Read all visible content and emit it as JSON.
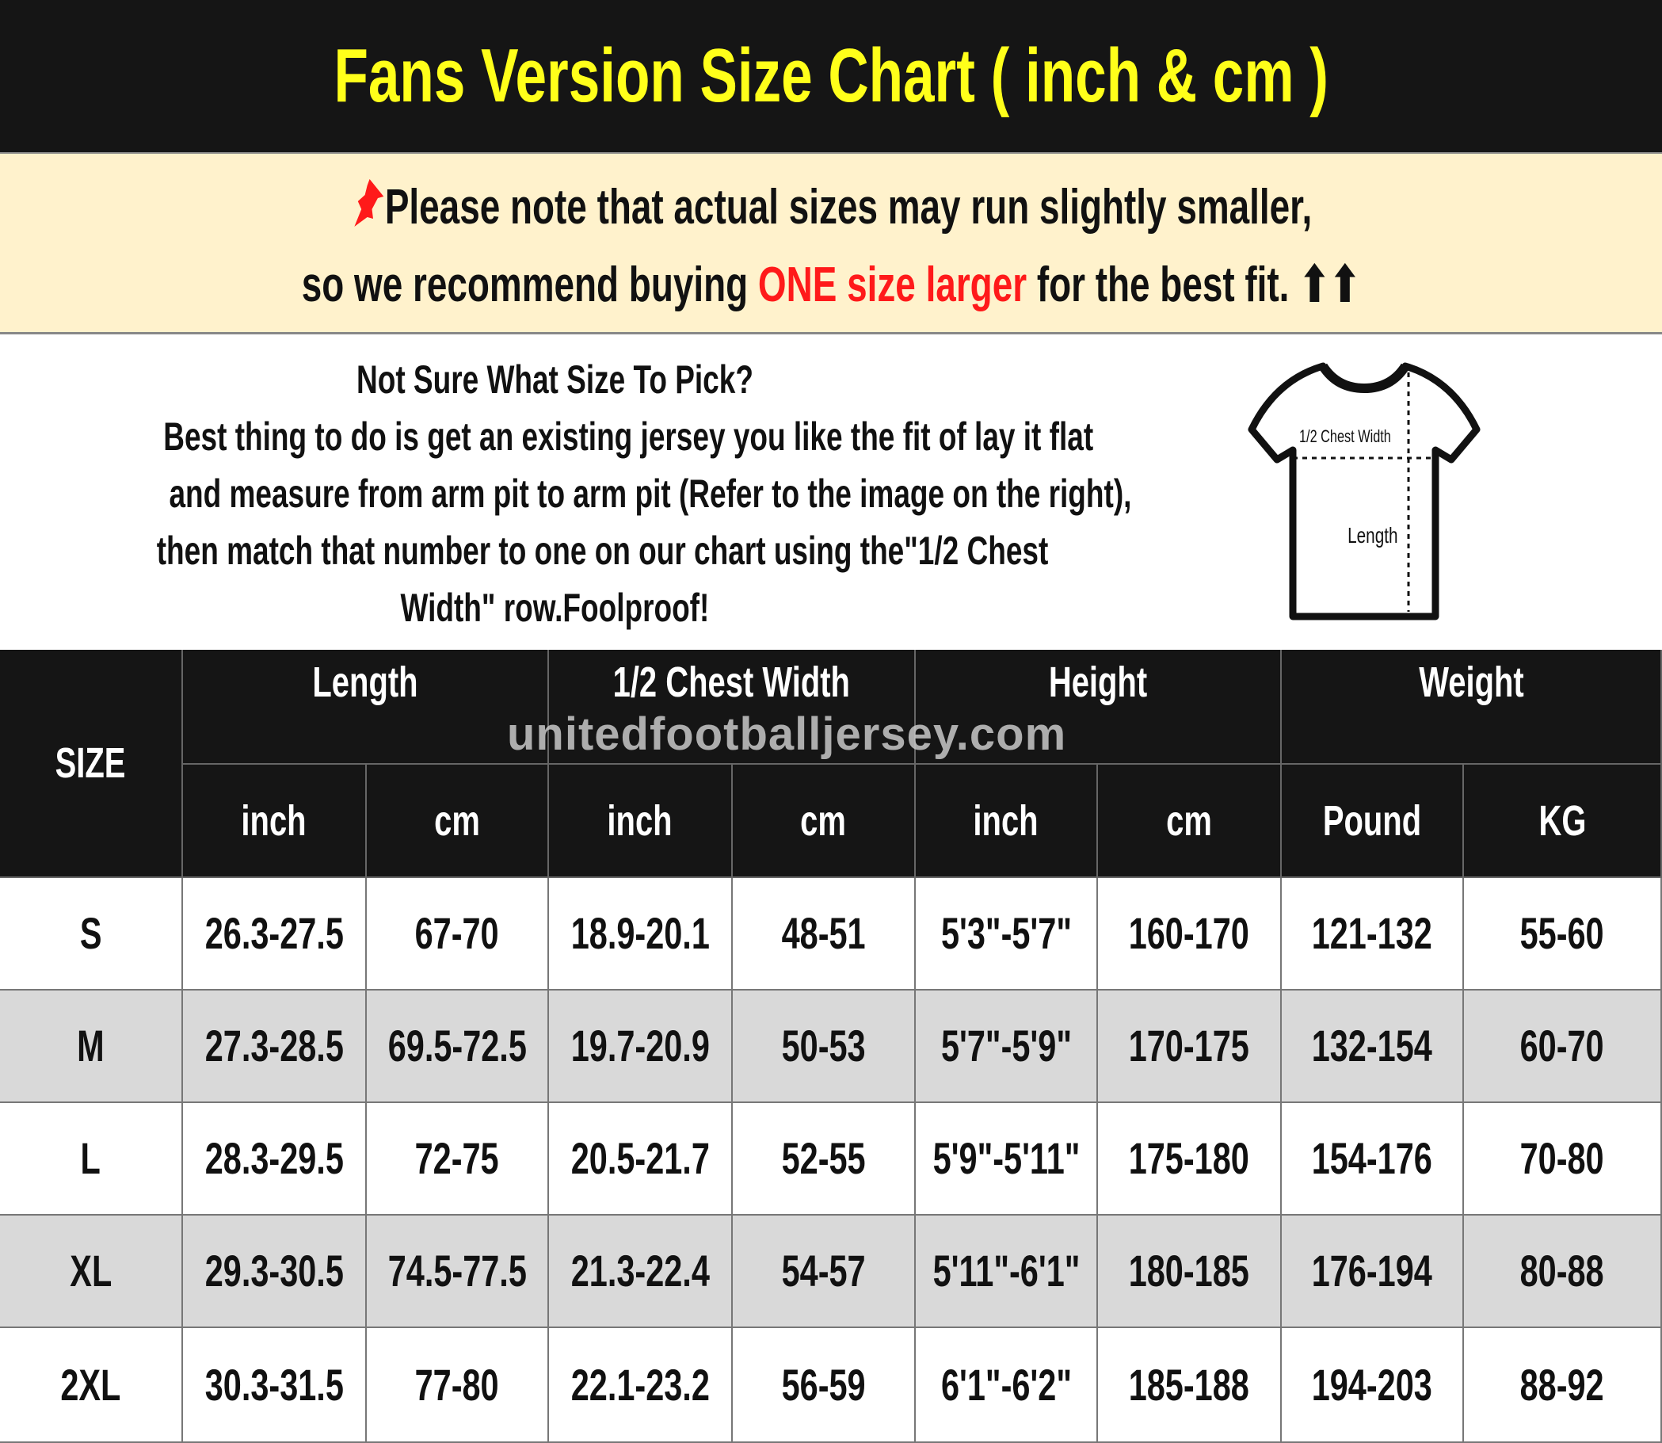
{
  "title": "Fans Version Size Chart ( inch & cm )",
  "note": {
    "icon": "pushpin-icon",
    "line1": "Please note that actual sizes may run slightly smaller,",
    "line2_before": "so we recommend buying ",
    "line2_highlight": "ONE size larger",
    "line2_after": " for the best fit. ",
    "arrows": "⬆⬆",
    "highlight_color": "#ff1a1a"
  },
  "info": {
    "heading": "Not Sure What Size To Pick?",
    "lines": [
      "Best thing to do is get an existing jersey you like the fit of lay it flat",
      "and measure from arm pit to arm pit (Refer to the image on the right),",
      "then match that number to one on our chart using the\"1/2 Chest",
      "Width\" row.Foolproof!"
    ],
    "diagram": {
      "chest_label": "1/2 Chest Width",
      "length_label": "Length"
    }
  },
  "watermark": "unitedfootballjersey.com",
  "table": {
    "size_header": "SIZE",
    "groups": [
      "Length",
      "1/2 Chest Width",
      "Height",
      "Weight"
    ],
    "subheaders": [
      "inch",
      "cm",
      "inch",
      "cm",
      "inch",
      "cm",
      "Pound",
      "KG"
    ],
    "rows": [
      [
        "S",
        "26.3-27.5",
        "67-70",
        "18.9-20.1",
        "48-51",
        "5'3\"-5'7\"",
        "160-170",
        "121-132",
        "55-60"
      ],
      [
        "M",
        "27.3-28.5",
        "69.5-72.5",
        "19.7-20.9",
        "50-53",
        "5'7\"-5'9\"",
        "170-175",
        "132-154",
        "60-70"
      ],
      [
        "L",
        "28.3-29.5",
        "72-75",
        "20.5-21.7",
        "52-55",
        "5'9\"-5'11\"",
        "175-180",
        "154-176",
        "70-80"
      ],
      [
        "XL",
        "29.3-30.5",
        "74.5-77.5",
        "21.3-22.4",
        "54-57",
        "5'11\"-6'1\"",
        "180-185",
        "176-194",
        "80-88"
      ],
      [
        "2XL",
        "30.3-31.5",
        "77-80",
        "22.1-23.2",
        "56-59",
        "6'1\"-6'2\"",
        "185-188",
        "194-203",
        "88-92"
      ]
    ]
  },
  "colors": {
    "title_bg": "#151515",
    "title_text": "#ffff1a",
    "note_bg": "#fff2cc",
    "alt_row": "#d9d9d9"
  }
}
